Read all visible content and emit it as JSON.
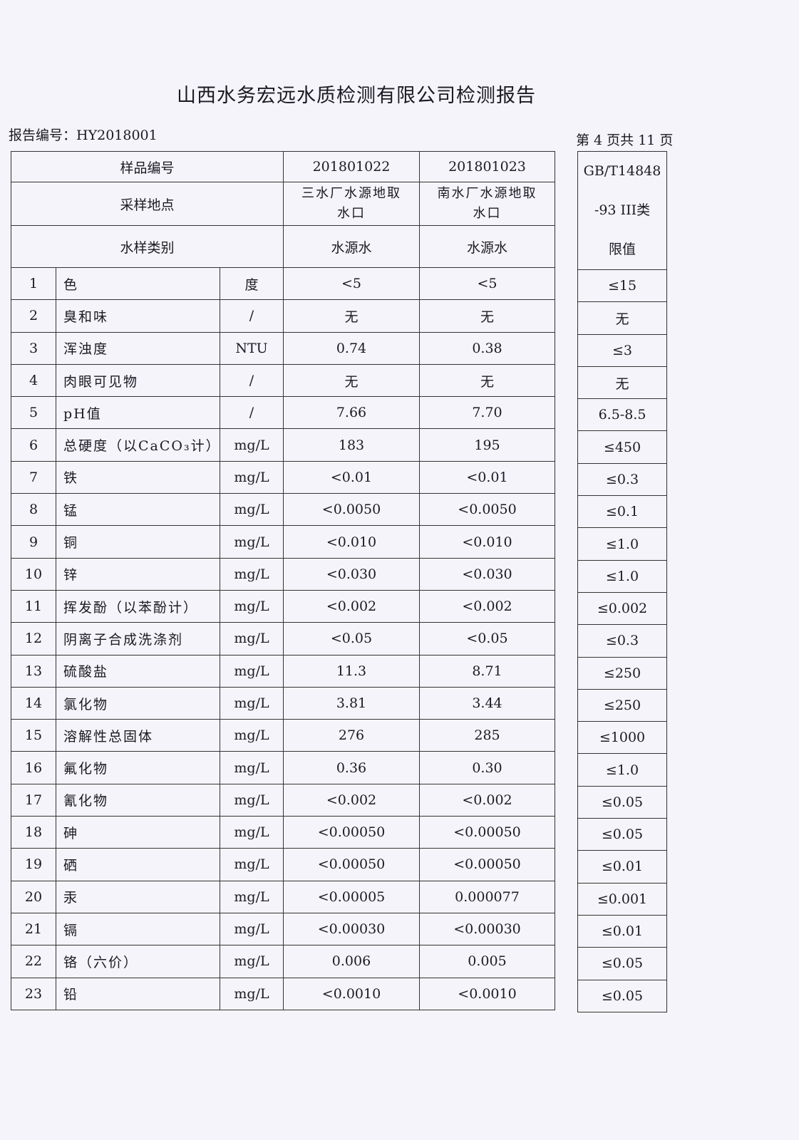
{
  "title": "山西水务宏远水质检测有限公司检测报告",
  "report_no": "报告编号：HY2018001",
  "page_no": "第 4 页共 11 页",
  "header": {
    "sample_no_label": "样品编号",
    "location_label": "采样地点",
    "type_label": "水样类别",
    "samples": [
      {
        "id": "201801022",
        "location_l1": "三水厂水源地取",
        "location_l2": "水口",
        "type": "水源水"
      },
      {
        "id": "201801023",
        "location_l1": "南水厂水源地取",
        "location_l2": "水口",
        "type": "水源水"
      }
    ],
    "standard_l1": "GB/T14848",
    "standard_l2": "-93 III类",
    "standard_l3": "限值"
  },
  "rows": [
    {
      "no": "1",
      "item": "色",
      "unit": "度",
      "s1": "<5",
      "s2": "<5",
      "limit": "≤15"
    },
    {
      "no": "2",
      "item": "臭和味",
      "unit": "/",
      "s1": "无",
      "s2": "无",
      "limit": "无"
    },
    {
      "no": "3",
      "item": "浑浊度",
      "unit": "NTU",
      "s1": "0.74",
      "s2": "0.38",
      "limit": "≤3"
    },
    {
      "no": "4",
      "item": "肉眼可见物",
      "unit": "/",
      "s1": "无",
      "s2": "无",
      "limit": "无"
    },
    {
      "no": "5",
      "item": "pH值",
      "unit": "/",
      "s1": "7.66",
      "s2": "7.70",
      "limit": "6.5-8.5"
    },
    {
      "no": "6",
      "item": "总硬度（以CaCO₃计）",
      "unit": "mg/L",
      "s1": "183",
      "s2": "195",
      "limit": "≤450"
    },
    {
      "no": "7",
      "item": "铁",
      "unit": "mg/L",
      "s1": "<0.01",
      "s2": "<0.01",
      "limit": "≤0.3"
    },
    {
      "no": "8",
      "item": "锰",
      "unit": "mg/L",
      "s1": "<0.0050",
      "s2": "<0.0050",
      "limit": "≤0.1"
    },
    {
      "no": "9",
      "item": "铜",
      "unit": "mg/L",
      "s1": "<0.010",
      "s2": "<0.010",
      "limit": "≤1.0"
    },
    {
      "no": "10",
      "item": "锌",
      "unit": "mg/L",
      "s1": "<0.030",
      "s2": "<0.030",
      "limit": "≤1.0"
    },
    {
      "no": "11",
      "item": "挥发酚（以苯酚计）",
      "unit": "mg/L",
      "s1": "<0.002",
      "s2": "<0.002",
      "limit": "≤0.002"
    },
    {
      "no": "12",
      "item": "阴离子合成洗涤剂",
      "unit": "mg/L",
      "s1": "<0.05",
      "s2": "<0.05",
      "limit": "≤0.3"
    },
    {
      "no": "13",
      "item": "硫酸盐",
      "unit": "mg/L",
      "s1": "11.3",
      "s2": "8.71",
      "limit": "≤250"
    },
    {
      "no": "14",
      "item": "氯化物",
      "unit": "mg/L",
      "s1": "3.81",
      "s2": "3.44",
      "limit": "≤250"
    },
    {
      "no": "15",
      "item": "溶解性总固体",
      "unit": "mg/L",
      "s1": "276",
      "s2": "285",
      "limit": "≤1000"
    },
    {
      "no": "16",
      "item": "氟化物",
      "unit": "mg/L",
      "s1": "0.36",
      "s2": "0.30",
      "limit": "≤1.0"
    },
    {
      "no": "17",
      "item": "氰化物",
      "unit": "mg/L",
      "s1": "<0.002",
      "s2": "<0.002",
      "limit": "≤0.05"
    },
    {
      "no": "18",
      "item": "砷",
      "unit": "mg/L",
      "s1": "<0.00050",
      "s2": "<0.00050",
      "limit": "≤0.05"
    },
    {
      "no": "19",
      "item": "硒",
      "unit": "mg/L",
      "s1": "<0.00050",
      "s2": "<0.00050",
      "limit": "≤0.01"
    },
    {
      "no": "20",
      "item": "汞",
      "unit": "mg/L",
      "s1": "<0.00005",
      "s2": "0.000077",
      "limit": "≤0.001"
    },
    {
      "no": "21",
      "item": "镉",
      "unit": "mg/L",
      "s1": "<0.00030",
      "s2": "<0.00030",
      "limit": "≤0.01"
    },
    {
      "no": "22",
      "item": "铬（六价）",
      "unit": "mg/L",
      "s1": "0.006",
      "s2": "0.005",
      "limit": "≤0.05"
    },
    {
      "no": "23",
      "item": "铅",
      "unit": "mg/L",
      "s1": "<0.0010",
      "s2": "<0.0010",
      "limit": "≤0.05"
    }
  ]
}
